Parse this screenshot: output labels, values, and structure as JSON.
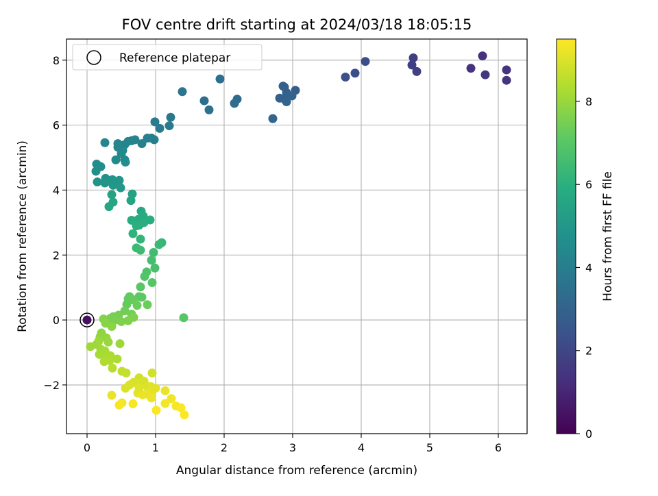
{
  "chart_data": {
    "type": "scatter",
    "title": "FOV centre drift starting at 2024/03/18 18:05:15",
    "xlabel": "Angular distance from reference (arcmin)",
    "ylabel": "Rotation from reference (arcmin)",
    "xlim": [
      -0.3,
      6.42
    ],
    "ylim": [
      -3.5,
      8.65
    ],
    "xticks": [
      0,
      1,
      2,
      3,
      4,
      5,
      6
    ],
    "yticks": [
      -2,
      0,
      2,
      4,
      6,
      8
    ],
    "xtick_labels": [
      "0",
      "1",
      "2",
      "3",
      "4",
      "5",
      "6"
    ],
    "ytick_labels": [
      "−2",
      "0",
      "2",
      "4",
      "6",
      "8"
    ],
    "grid": true,
    "legend": {
      "placement": "top-left",
      "entries": [
        "Reference platepar"
      ]
    },
    "reference_point": {
      "x": 0.0,
      "y": 0.0,
      "c": 0.4
    },
    "colorbar": {
      "label": "Hours from first FF file",
      "range": [
        0,
        9.5
      ],
      "ticks": [
        0,
        2,
        4,
        6,
        8
      ],
      "tick_labels": [
        "0",
        "2",
        "4",
        "6",
        "8"
      ],
      "colormap": "viridis"
    },
    "points": [
      [
        5.77,
        8.13,
        1.35
      ],
      [
        5.81,
        7.55,
        1.45
      ],
      [
        6.12,
        7.7,
        1.4
      ],
      [
        6.12,
        7.38,
        1.4
      ],
      [
        5.6,
        7.75,
        1.4
      ],
      [
        4.76,
        8.07,
        1.75
      ],
      [
        4.74,
        7.85,
        1.75
      ],
      [
        4.81,
        7.65,
        1.8
      ],
      [
        4.06,
        7.96,
        2.2
      ],
      [
        3.91,
        7.6,
        2.25
      ],
      [
        3.77,
        7.48,
        2.3
      ],
      [
        3.04,
        7.07,
        2.8
      ],
      [
        2.86,
        7.2,
        2.85
      ],
      [
        2.88,
        7.17,
        2.9
      ],
      [
        2.91,
        7.0,
        2.95
      ],
      [
        2.99,
        6.9,
        3.0
      ],
      [
        2.81,
        6.83,
        2.95
      ],
      [
        2.88,
        6.8,
        3.0
      ],
      [
        2.91,
        6.72,
        3.05
      ],
      [
        2.71,
        6.2,
        3.1
      ],
      [
        2.19,
        6.8,
        3.3
      ],
      [
        2.15,
        6.67,
        3.35
      ],
      [
        1.94,
        7.42,
        3.4
      ],
      [
        1.71,
        6.75,
        3.5
      ],
      [
        1.78,
        6.47,
        3.55
      ],
      [
        1.39,
        7.03,
        3.7
      ],
      [
        1.22,
        6.24,
        3.8
      ],
      [
        1.2,
        5.98,
        3.85
      ],
      [
        1.06,
        5.9,
        3.9
      ],
      [
        0.99,
        6.1,
        3.9
      ],
      [
        0.94,
        5.6,
        4.0
      ],
      [
        0.98,
        5.55,
        4.05
      ],
      [
        0.88,
        5.6,
        4.1
      ],
      [
        0.8,
        5.43,
        4.15
      ],
      [
        0.7,
        5.55,
        4.2
      ],
      [
        0.6,
        5.5,
        4.25
      ],
      [
        0.65,
        5.52,
        4.25
      ],
      [
        0.55,
        5.4,
        4.3
      ],
      [
        0.45,
        5.43,
        4.3
      ],
      [
        0.45,
        5.32,
        4.35
      ],
      [
        0.52,
        5.22,
        4.4
      ],
      [
        0.5,
        5.12,
        4.45
      ],
      [
        0.26,
        5.46,
        4.35
      ],
      [
        0.42,
        4.93,
        4.5
      ],
      [
        0.55,
        4.93,
        4.5
      ],
      [
        0.56,
        4.86,
        4.55
      ],
      [
        0.14,
        4.8,
        4.6
      ],
      [
        0.2,
        4.72,
        4.65
      ],
      [
        0.13,
        4.58,
        4.7
      ],
      [
        0.27,
        4.36,
        4.8
      ],
      [
        0.15,
        4.25,
        4.85
      ],
      [
        0.26,
        4.22,
        4.9
      ],
      [
        0.37,
        4.32,
        4.9
      ],
      [
        0.47,
        4.3,
        4.95
      ],
      [
        0.4,
        4.25,
        5.0
      ],
      [
        0.38,
        4.15,
        5.0
      ],
      [
        0.49,
        4.07,
        5.05
      ],
      [
        0.66,
        3.88,
        5.4
      ],
      [
        0.36,
        3.86,
        5.45
      ],
      [
        0.64,
        3.68,
        5.5
      ],
      [
        0.38,
        3.63,
        5.55
      ],
      [
        0.32,
        3.49,
        5.6
      ],
      [
        0.79,
        3.35,
        5.7
      ],
      [
        0.82,
        3.2,
        5.8
      ],
      [
        0.75,
        3.1,
        5.85
      ],
      [
        0.92,
        3.08,
        5.9
      ],
      [
        0.65,
        3.07,
        5.9
      ],
      [
        0.83,
        3.0,
        5.95
      ],
      [
        0.76,
        2.92,
        6.0
      ],
      [
        0.72,
        2.9,
        6.0
      ],
      [
        0.67,
        2.66,
        6.1
      ],
      [
        0.78,
        2.49,
        6.2
      ],
      [
        1.09,
        2.38,
        6.3
      ],
      [
        1.05,
        2.32,
        6.35
      ],
      [
        0.72,
        2.22,
        6.4
      ],
      [
        0.78,
        2.15,
        6.45
      ],
      [
        0.97,
        2.08,
        6.5
      ],
      [
        0.94,
        1.84,
        6.6
      ],
      [
        0.99,
        1.6,
        6.7
      ],
      [
        0.87,
        1.48,
        6.8
      ],
      [
        0.84,
        1.34,
        6.85
      ],
      [
        0.95,
        1.15,
        6.95
      ],
      [
        0.78,
        1.02,
        7.0
      ],
      [
        0.76,
        0.72,
        7.1
      ],
      [
        0.8,
        0.7,
        7.1
      ],
      [
        0.62,
        0.72,
        7.15
      ],
      [
        0.6,
        0.65,
        7.2
      ],
      [
        0.58,
        0.48,
        7.2
      ],
      [
        0.67,
        0.62,
        7.25
      ],
      [
        0.73,
        0.45,
        7.3
      ],
      [
        0.88,
        0.47,
        7.3
      ],
      [
        0.55,
        0.28,
        7.4
      ],
      [
        0.65,
        0.18,
        7.45
      ],
      [
        0.46,
        0.15,
        7.45
      ],
      [
        0.38,
        0.1,
        7.5
      ],
      [
        0.34,
        0.05,
        7.55
      ],
      [
        0.42,
        0.0,
        7.55
      ],
      [
        0.5,
        -0.05,
        7.6
      ],
      [
        0.6,
        -0.02,
        7.6
      ],
      [
        0.68,
        0.08,
        7.6
      ],
      [
        1.41,
        0.07,
        7.0
      ],
      [
        0.24,
        0.03,
        7.7
      ],
      [
        0.27,
        -0.1,
        7.75
      ],
      [
        0.36,
        -0.2,
        7.8
      ],
      [
        0.21,
        -0.4,
        7.85
      ],
      [
        0.19,
        -0.52,
        7.9
      ],
      [
        0.28,
        -0.55,
        7.95
      ],
      [
        0.31,
        -0.68,
        8.0
      ],
      [
        0.17,
        -0.65,
        8.05
      ],
      [
        0.48,
        -0.73,
        8.05
      ],
      [
        0.14,
        -0.75,
        8.1
      ],
      [
        0.05,
        -0.82,
        8.1
      ],
      [
        0.2,
        -0.9,
        8.15
      ],
      [
        0.26,
        -0.95,
        8.2
      ],
      [
        0.18,
        -1.06,
        8.2
      ],
      [
        0.28,
        -1.08,
        8.25
      ],
      [
        0.34,
        -1.1,
        8.25
      ],
      [
        0.44,
        -1.2,
        8.3
      ],
      [
        0.25,
        -1.28,
        8.35
      ],
      [
        0.33,
        -1.25,
        8.35
      ],
      [
        0.37,
        -1.48,
        8.45
      ],
      [
        0.51,
        -1.58,
        8.6
      ],
      [
        0.57,
        -1.63,
        8.65
      ],
      [
        0.95,
        -1.63,
        8.8
      ],
      [
        0.76,
        -1.78,
        8.85
      ],
      [
        0.83,
        -1.88,
        8.9
      ],
      [
        0.68,
        -1.92,
        8.9
      ],
      [
        0.73,
        -1.95,
        8.95
      ],
      [
        0.56,
        -2.1,
        9.0
      ],
      [
        0.62,
        -2.0,
        9.0
      ],
      [
        0.88,
        -2.05,
        9.0
      ],
      [
        0.93,
        -2.05,
        9.05
      ],
      [
        1.0,
        -2.1,
        9.1
      ],
      [
        0.94,
        -2.2,
        9.1
      ],
      [
        1.14,
        -2.18,
        9.2
      ],
      [
        0.74,
        -2.25,
        9.15
      ],
      [
        0.81,
        -2.3,
        9.2
      ],
      [
        0.87,
        -2.28,
        9.2
      ],
      [
        1.23,
        -2.42,
        9.3
      ],
      [
        1.14,
        -2.57,
        9.35
      ],
      [
        0.51,
        -2.55,
        9.35
      ],
      [
        0.67,
        -2.58,
        9.4
      ],
      [
        0.47,
        -2.62,
        9.4
      ],
      [
        1.3,
        -2.65,
        9.4
      ],
      [
        1.01,
        -2.78,
        9.45
      ],
      [
        1.37,
        -2.7,
        9.45
      ],
      [
        1.42,
        -2.92,
        9.5
      ],
      [
        0.36,
        -2.32,
        9.2
      ],
      [
        0.94,
        -2.4,
        9.25
      ],
      [
        0.76,
        -2.1,
        9.05
      ]
    ]
  }
}
